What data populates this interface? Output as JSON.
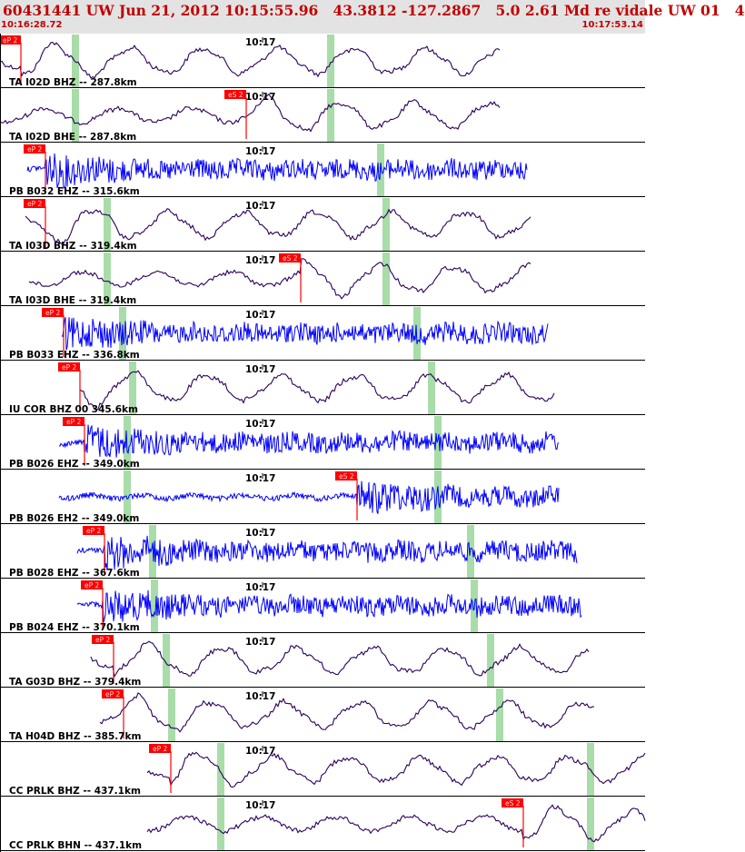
{
  "header": {
    "title": "60431441 UW Jun 21, 2012 10:15:55.96   43.3812 -127.2867   5.0 2.61 Md re vidale UW 01   4",
    "time_start": "10:16:28.72",
    "time_end": "10:17:53.14"
  },
  "colors": {
    "header_text": "#c00000",
    "broadband_trace": "#2b005a",
    "short_period_trace": "#0000ff",
    "pick": "#ff0000",
    "window_band": "#a8dca8"
  },
  "minute_label": "10:17",
  "traces": [
    {
      "label": "TA I02D BHZ -- 287.8km",
      "type": "bb",
      "p_pick": "eP 2",
      "s_pick": ""
    },
    {
      "label": "TA I02D BHE -- 287.8km",
      "type": "bb",
      "p_pick": "",
      "s_pick": "eS 2"
    },
    {
      "label": "PB B032 EHZ -- 315.6km",
      "type": "sp",
      "p_pick": "eP 2",
      "s_pick": ""
    },
    {
      "label": "TA I03D BHZ -- 319.4km",
      "type": "bb",
      "p_pick": "eP 2",
      "s_pick": ""
    },
    {
      "label": "TA I03D BHE -- 319.4km",
      "type": "bb",
      "p_pick": "",
      "s_pick": "eS 2"
    },
    {
      "label": "PB B033 EHZ -- 336.8km",
      "type": "sp",
      "p_pick": "eP 2",
      "s_pick": ""
    },
    {
      "label": "IU COR BHZ 00 345.6km",
      "type": "bb",
      "p_pick": "eP 2",
      "s_pick": ""
    },
    {
      "label": "PB B026 EHZ -- 349.0km",
      "type": "sp",
      "p_pick": "eP 2",
      "s_pick": ""
    },
    {
      "label": "PB B026 EH2 -- 349.0km",
      "type": "sp",
      "p_pick": "",
      "s_pick": "eS 2"
    },
    {
      "label": "PB B028 EHZ -- 367.6km",
      "type": "sp",
      "p_pick": "eP 2",
      "s_pick": ""
    },
    {
      "label": "PB B024 EHZ -- 370.1km",
      "type": "sp",
      "p_pick": "eP 2",
      "s_pick": ""
    },
    {
      "label": "TA G03D BHZ -- 379.4km",
      "type": "bb",
      "p_pick": "eP 2",
      "s_pick": ""
    },
    {
      "label": "TA H04D BHZ -- 385.7km",
      "type": "bb",
      "p_pick": "eP 2",
      "s_pick": ""
    },
    {
      "label": "CC PRLK BHZ -- 437.1km",
      "type": "bb",
      "p_pick": "eP 2",
      "s_pick": ""
    },
    {
      "label": "CC PRLK BHN -- 437.1km",
      "type": "bb",
      "p_pick": "",
      "s_pick": "eS 2"
    }
  ]
}
